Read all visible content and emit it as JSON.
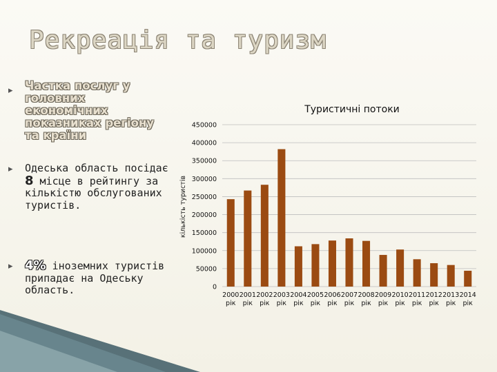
{
  "slide": {
    "title": "Рекреація та туризм",
    "bullets": [
      {
        "text": "Частка послуг у головних економічних показниках регіону та країни"
      },
      {
        "pre": "Одеська область посідає ",
        "highlight": "8",
        "post": " місце в рейтингу за кількістю обслугованих туристів."
      },
      {
        "highlight": "4%",
        "post": " іноземних туристів припадає на Одеську область."
      }
    ],
    "colors": {
      "bar": "#9b4b12",
      "title_fill": "#dcd6c4"
    }
  },
  "chart_data": {
    "type": "bar",
    "title": "Туристичні потоки",
    "ylabel": "кількість туристів",
    "xlabel": "",
    "categories": [
      "2000 рік",
      "2001 рік",
      "2002 рік",
      "2003 рік",
      "2004 рік",
      "2005 рік",
      "2006 рік",
      "2007 рік",
      "2008 рік",
      "2009 рік",
      "2010 рік",
      "2011 рік",
      "2012 рік",
      "2013 рік",
      "2014 рік"
    ],
    "x_top": [
      "2000",
      "2001",
      "2002",
      "2003",
      "2004",
      "2005",
      "2006",
      "2007",
      "2008",
      "2009",
      "2010",
      "2011",
      "2012",
      "2013",
      "2014"
    ],
    "x_bottom": "рік",
    "values": [
      243000,
      267000,
      283000,
      382000,
      112000,
      118000,
      128000,
      134000,
      127000,
      88000,
      103000,
      76000,
      65000,
      60000,
      44000
    ],
    "ylim": [
      0,
      450000
    ],
    "yticks": [
      "0",
      "50000",
      "100000",
      "150000",
      "200000",
      "250000",
      "300000",
      "350000",
      "400000",
      "450000"
    ],
    "ytick_values": [
      0,
      50000,
      100000,
      150000,
      200000,
      250000,
      300000,
      350000,
      400000,
      450000
    ],
    "grid": true,
    "legend": "none"
  }
}
